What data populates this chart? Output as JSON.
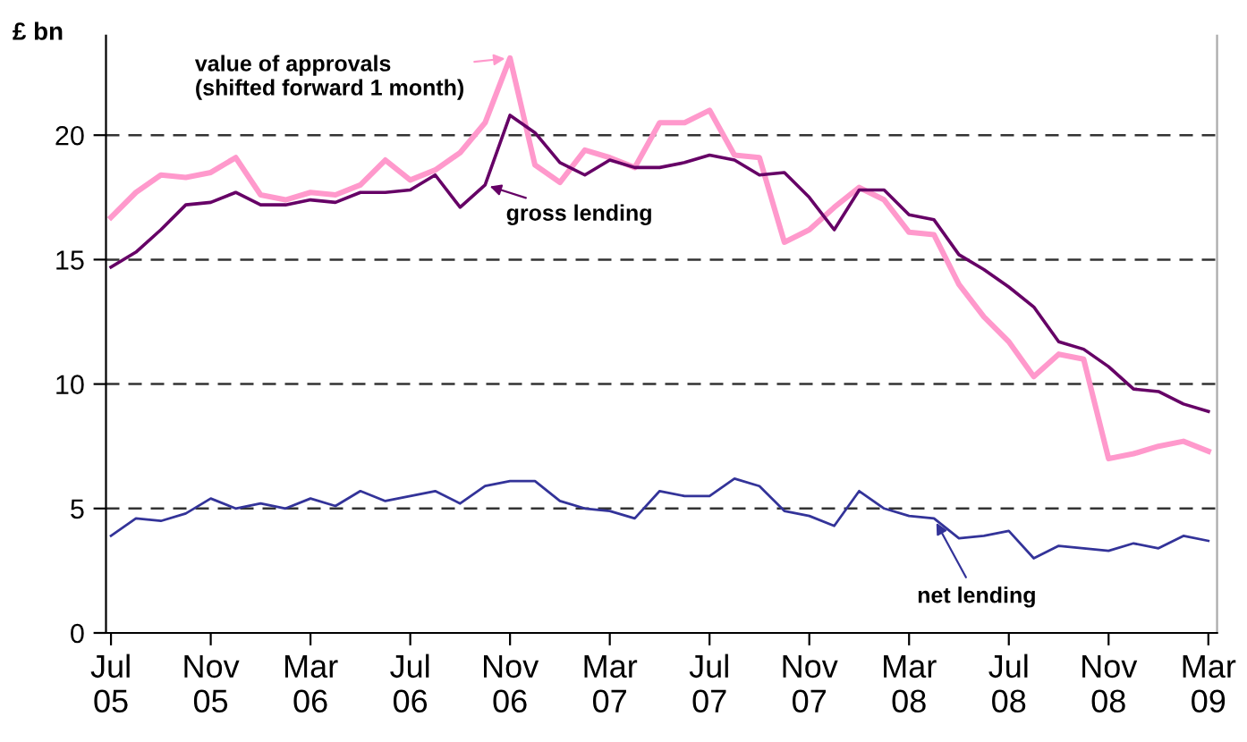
{
  "chart_data": {
    "type": "line",
    "ylabel": "£ bn",
    "categories": [
      "Jul 05",
      null,
      null,
      null,
      "Nov 05",
      null,
      null,
      null,
      "Mar 06",
      null,
      null,
      null,
      "Jul 06",
      null,
      null,
      null,
      "Nov 06",
      null,
      null,
      null,
      "Mar 07",
      null,
      null,
      null,
      "Jul 07",
      null,
      null,
      null,
      "Nov 07",
      null,
      null,
      null,
      "Mar 08",
      null,
      null,
      null,
      "Jul 08",
      null,
      null,
      null,
      "Nov 08",
      null,
      null,
      null,
      "Mar 09"
    ],
    "series": [
      {
        "name": "value of approvals (shifted forward 1 month)",
        "color": "#ff99cc",
        "values": [
          16.7,
          17.7,
          18.4,
          18.3,
          18.5,
          19.1,
          17.6,
          17.4,
          17.7,
          17.6,
          18.0,
          19.0,
          18.2,
          18.6,
          19.3,
          20.5,
          23.1,
          18.8,
          18.1,
          19.4,
          19.1,
          18.7,
          20.5,
          20.5,
          21.0,
          19.2,
          19.1,
          15.7,
          16.2,
          17.1,
          17.9,
          17.4,
          16.1,
          16.0,
          14.0,
          12.7,
          11.7,
          10.3,
          11.2,
          11.0,
          7.0,
          7.2,
          7.5,
          7.7,
          7.3
        ]
      },
      {
        "name": "gross lending",
        "color": "#660066",
        "values": [
          14.7,
          15.3,
          16.2,
          17.2,
          17.3,
          17.7,
          17.2,
          17.2,
          17.4,
          17.3,
          17.7,
          17.7,
          17.8,
          18.4,
          17.1,
          18.0,
          20.8,
          20.1,
          18.9,
          18.4,
          19.0,
          18.7,
          18.7,
          18.9,
          19.2,
          19.0,
          18.4,
          18.5,
          17.5,
          16.2,
          17.8,
          17.8,
          16.8,
          16.6,
          15.2,
          14.6,
          13.9,
          13.1,
          11.7,
          11.4,
          10.7,
          9.8,
          9.7,
          9.2,
          8.9
        ]
      },
      {
        "name": "net lending",
        "color": "#333399",
        "values": [
          3.9,
          4.6,
          4.5,
          4.8,
          5.4,
          5.0,
          5.2,
          5.0,
          5.4,
          5.1,
          5.7,
          5.3,
          5.5,
          5.7,
          5.2,
          5.9,
          6.1,
          6.1,
          5.3,
          5.0,
          4.9,
          4.6,
          5.7,
          5.5,
          5.5,
          6.2,
          5.9,
          4.9,
          4.7,
          4.3,
          5.7,
          5.0,
          4.7,
          4.6,
          3.8,
          3.9,
          4.1,
          3.0,
          3.5,
          3.4,
          3.3,
          3.6,
          3.4,
          3.9,
          3.7
        ]
      }
    ],
    "ylim": [
      0,
      24
    ],
    "yticks": [
      0,
      5,
      10,
      15,
      20
    ],
    "grid": "y",
    "legend": "center",
    "marker": "none",
    "line_style": "solid"
  }
}
